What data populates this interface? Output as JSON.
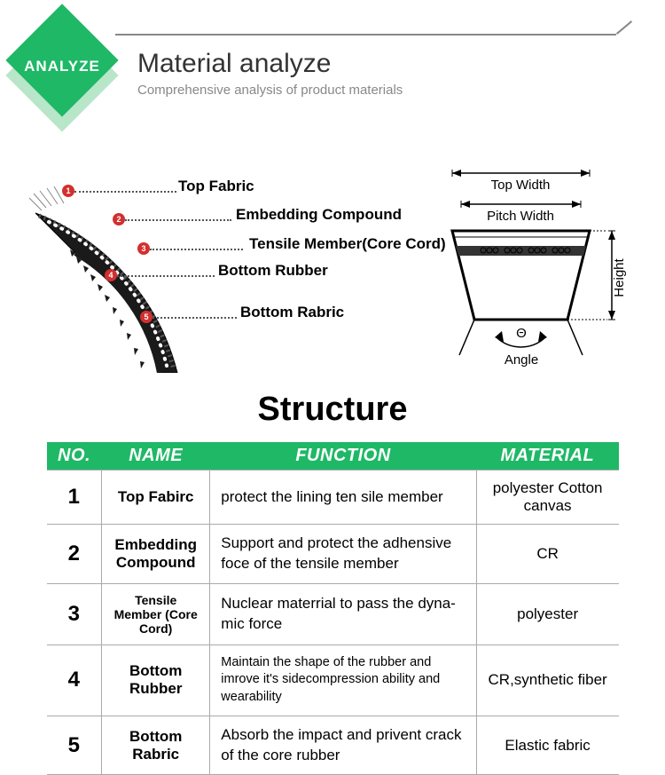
{
  "colors": {
    "accent": "#1fb866",
    "accent_shadow": "#b8e6c8",
    "dot": "#d32f2f",
    "header_line": "#888888"
  },
  "header": {
    "badge": "ANALYZE",
    "title": "Material analyze",
    "subtitle": "Comprehensive analysis of product materials"
  },
  "belt_callouts": [
    {
      "num": "1",
      "label": "Top Fabric"
    },
    {
      "num": "2",
      "label": "Embedding Compound"
    },
    {
      "num": "3",
      "label": "Tensile Member(Core Cord)"
    },
    {
      "num": "4",
      "label": "Bottom Rubber"
    },
    {
      "num": "5",
      "label": "Bottom Rabric"
    }
  ],
  "cross_labels": {
    "top_width": "Top Width",
    "pitch_width": "Pitch Width",
    "height": "Height",
    "angle_symbol": "Θ",
    "angle": "Angle"
  },
  "structure": {
    "title": "Structure",
    "headers": {
      "no": "NO.",
      "name": "NAME",
      "func": "FUNCTION",
      "mat": "MATERIAL"
    },
    "rows": [
      {
        "no": "1",
        "name": "Top Fabirc",
        "func": "protect the lining ten sile member",
        "mat": "polyester Cotton canvas"
      },
      {
        "no": "2",
        "name": "Embedding Compound",
        "func": "Support and protect the adhensive foce of the tensile member",
        "mat": "CR"
      },
      {
        "no": "3",
        "name": "Tensile Member (Core Cord)",
        "func": "Nuclear materrial to pass the dyna-mic force",
        "mat": "polyester",
        "small_name": true
      },
      {
        "no": "4",
        "name": "Bottom Rubber",
        "func": "Maintain the shape of the rubber and imrove it's sidecompression ability and wearability",
        "mat": "CR,synthetic fiber",
        "small_func": true
      },
      {
        "no": "5",
        "name": "Bottom Rabric",
        "func": "Absorb the impact and privent crack of the core rubber",
        "mat": "Elastic fabric"
      }
    ]
  }
}
